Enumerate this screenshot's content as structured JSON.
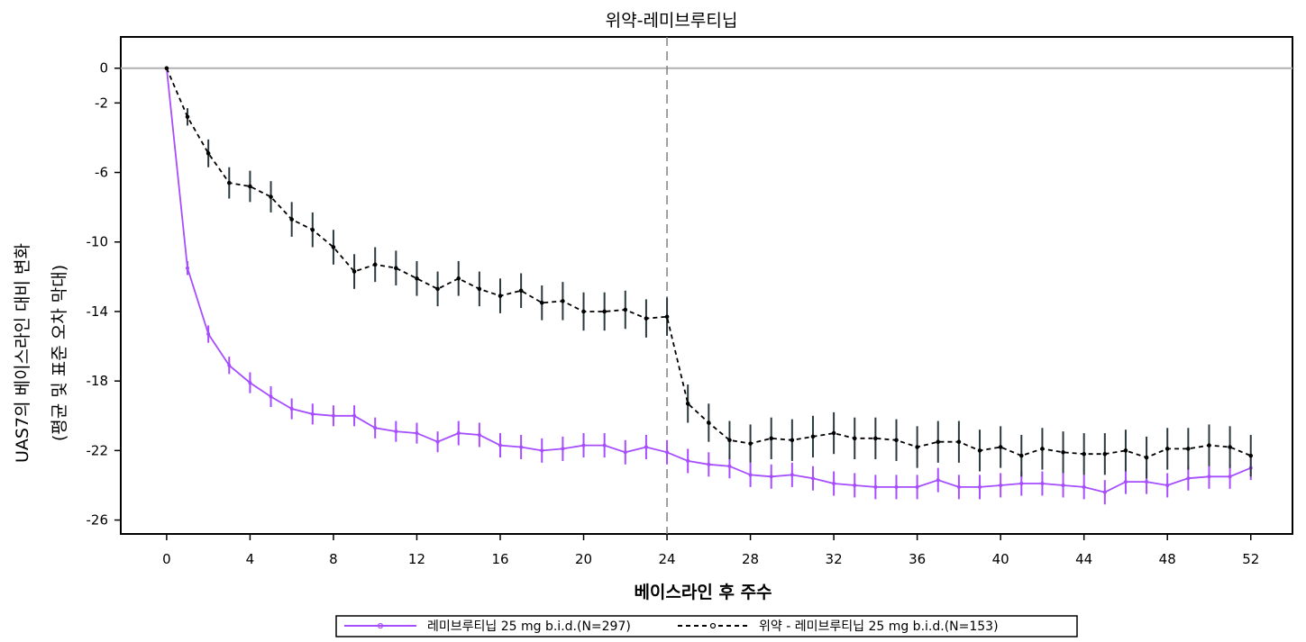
{
  "chart_data": {
    "type": "line",
    "title": "위약-레미브루티닙",
    "xlabel": "베이스라인 후 주수",
    "ylabel_line1": "UAS7의 베이스라인 대비 변화",
    "ylabel_line2": "(평균 및 표준 오차 막대)",
    "xlim": [
      -2.2,
      54
    ],
    "ylim": [
      -26.8,
      1.8
    ],
    "x_ticks": [
      0,
      4,
      8,
      12,
      16,
      20,
      24,
      28,
      32,
      36,
      40,
      44,
      48,
      52
    ],
    "y_ticks": [
      0,
      -2,
      -6,
      -10,
      -14,
      -18,
      -22,
      -26
    ],
    "reference_line_y": 0,
    "vertical_reference_x": 24,
    "grid": false,
    "legend_position": "bottom",
    "colors": {
      "remibrutinib": "#a64dff",
      "placebo": "#000000",
      "zero_line": "#b0b0b0",
      "ref_line": "#808080"
    },
    "series": [
      {
        "name": "레미브루티닙 25 mg b.i.d.(N=297)",
        "style": "solid",
        "x": [
          0,
          1,
          2,
          3,
          4,
          5,
          6,
          7,
          8,
          9,
          10,
          11,
          12,
          13,
          14,
          15,
          16,
          17,
          18,
          19,
          20,
          21,
          22,
          23,
          24,
          25,
          26,
          27,
          28,
          29,
          30,
          31,
          32,
          33,
          34,
          35,
          36,
          37,
          38,
          39,
          40,
          41,
          42,
          43,
          44,
          45,
          46,
          47,
          48,
          49,
          50,
          51,
          52
        ],
        "y": [
          0,
          -11.5,
          -15.3,
          -17.1,
          -18.1,
          -18.9,
          -19.6,
          -19.9,
          -20.0,
          -20.0,
          -20.7,
          -20.9,
          -21.0,
          -21.5,
          -21.0,
          -21.1,
          -21.7,
          -21.8,
          -22.0,
          -21.9,
          -21.7,
          -21.7,
          -22.1,
          -21.8,
          -22.1,
          -22.6,
          -22.8,
          -22.9,
          -23.4,
          -23.5,
          -23.4,
          -23.6,
          -23.9,
          -24.0,
          -24.1,
          -24.1,
          -24.1,
          -23.7,
          -24.1,
          -24.1,
          -24.0,
          -23.9,
          -23.9,
          -24.0,
          -24.1,
          -24.4,
          -23.8,
          -23.8,
          -24.0,
          -23.6,
          -23.5,
          -23.5,
          -23.0
        ],
        "err": [
          0,
          0.4,
          0.5,
          0.5,
          0.6,
          0.6,
          0.6,
          0.6,
          0.6,
          0.6,
          0.6,
          0.6,
          0.6,
          0.6,
          0.7,
          0.7,
          0.7,
          0.7,
          0.7,
          0.7,
          0.7,
          0.7,
          0.7,
          0.7,
          0.7,
          0.7,
          0.7,
          0.7,
          0.7,
          0.7,
          0.7,
          0.7,
          0.7,
          0.7,
          0.7,
          0.7,
          0.7,
          0.7,
          0.7,
          0.7,
          0.7,
          0.7,
          0.7,
          0.7,
          0.7,
          0.7,
          0.7,
          0.7,
          0.7,
          0.7,
          0.7,
          0.7,
          0.7
        ]
      },
      {
        "name": "위약 - 레미브루티닙 25 mg b.i.d.(N=153)",
        "style": "dashed",
        "x": [
          0,
          1,
          2,
          3,
          4,
          5,
          6,
          7,
          8,
          9,
          10,
          11,
          12,
          13,
          14,
          15,
          16,
          17,
          18,
          19,
          20,
          21,
          22,
          23,
          24,
          25,
          26,
          27,
          28,
          29,
          30,
          31,
          32,
          33,
          34,
          35,
          36,
          37,
          38,
          39,
          40,
          41,
          42,
          43,
          44,
          45,
          46,
          47,
          48,
          49,
          50,
          51,
          52
        ],
        "y": [
          0,
          -2.8,
          -4.9,
          -6.6,
          -6.8,
          -7.4,
          -8.7,
          -9.3,
          -10.3,
          -11.7,
          -11.3,
          -11.5,
          -12.1,
          -12.7,
          -12.1,
          -12.7,
          -13.1,
          -12.8,
          -13.5,
          -13.4,
          -14.0,
          -14.0,
          -13.9,
          -14.4,
          -14.3,
          -19.3,
          -20.4,
          -21.4,
          -21.6,
          -21.3,
          -21.4,
          -21.2,
          -21.0,
          -21.3,
          -21.3,
          -21.4,
          -21.8,
          -21.5,
          -21.5,
          -22.0,
          -21.8,
          -22.3,
          -21.9,
          -22.1,
          -22.2,
          -22.2,
          -22.0,
          -22.4,
          -21.9,
          -21.9,
          -21.7,
          -21.8,
          -22.3
        ],
        "err": [
          0,
          0.5,
          0.8,
          0.9,
          0.9,
          0.9,
          1.0,
          1.0,
          1.0,
          1.0,
          1.0,
          1.0,
          1.0,
          1.0,
          1.0,
          1.0,
          1.0,
          1.0,
          1.0,
          1.1,
          1.1,
          1.1,
          1.1,
          1.1,
          1.1,
          1.1,
          1.1,
          1.1,
          1.1,
          1.2,
          1.2,
          1.2,
          1.2,
          1.2,
          1.2,
          1.2,
          1.2,
          1.2,
          1.2,
          1.2,
          1.2,
          1.2,
          1.2,
          1.2,
          1.2,
          1.2,
          1.2,
          1.2,
          1.2,
          1.2,
          1.2,
          1.2,
          1.2
        ]
      }
    ]
  }
}
